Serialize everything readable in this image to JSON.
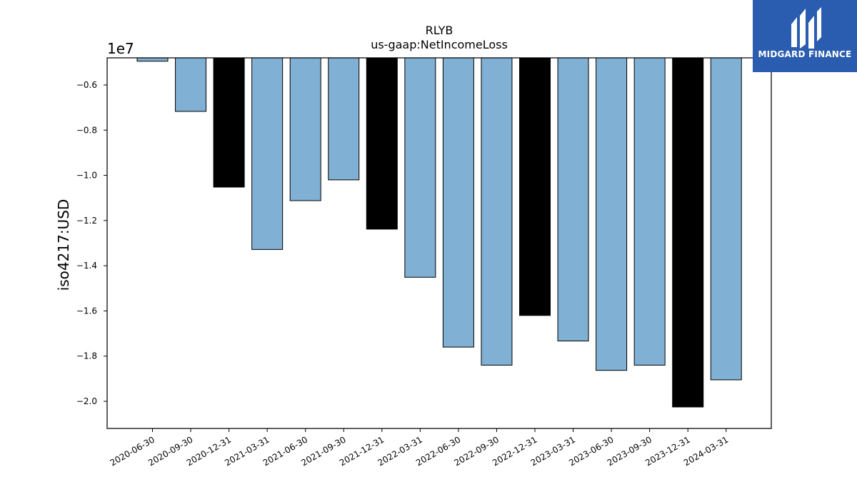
{
  "brand": {
    "name": "MIDGARD FINANCE",
    "background": "#2a5cb0"
  },
  "chart_data": {
    "type": "bar",
    "title": "RLYB",
    "subtitle": "us-gaap:NetIncomeLoss",
    "ylabel": "iso4217:USD",
    "xlabel": "",
    "y_offset_label": "1e7",
    "y_scale": 10000000,
    "ylim": [
      -2.12,
      -0.48
    ],
    "yticks": [
      -0.6,
      -0.8,
      -1.0,
      -1.2,
      -1.4,
      -1.6,
      -1.8,
      -2.0
    ],
    "ytick_labels": [
      "−0.6",
      "−0.8",
      "−1.0",
      "−1.2",
      "−1.4",
      "−1.6",
      "−1.8",
      "−2.0"
    ],
    "grid": false,
    "categories": [
      "2020-06-30",
      "2020-09-30",
      "2020-12-31",
      "2021-03-31",
      "2021-06-30",
      "2021-09-30",
      "2021-12-31",
      "2022-03-31",
      "2022-06-30",
      "2022-09-30",
      "2022-12-31",
      "2023-03-31",
      "2023-06-30",
      "2023-09-30",
      "2023-12-31",
      "2024-03-31"
    ],
    "values": [
      -0.495,
      -0.717,
      -1.052,
      -1.328,
      -1.112,
      -1.02,
      -1.238,
      -1.451,
      -1.76,
      -1.84,
      -1.62,
      -1.733,
      -1.863,
      -1.84,
      -2.025,
      -1.905
    ],
    "bar_colors": [
      "#80b0d4",
      "#80b0d4",
      "#000000",
      "#80b0d4",
      "#80b0d4",
      "#80b0d4",
      "#000000",
      "#80b0d4",
      "#80b0d4",
      "#80b0d4",
      "#000000",
      "#80b0d4",
      "#80b0d4",
      "#80b0d4",
      "#000000",
      "#80b0d4"
    ]
  }
}
